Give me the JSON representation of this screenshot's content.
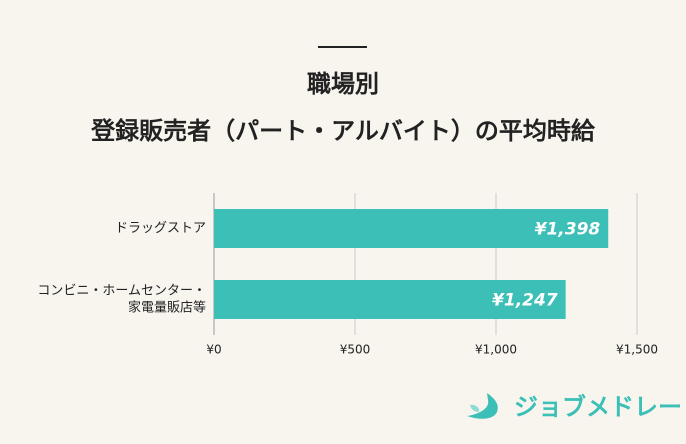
{
  "chart_data": {
    "type": "hbar",
    "title": [
      "職場別",
      "登録販売者（パート・アルバイト）の平均時給"
    ],
    "categories": [
      [
        "ドラッグストア"
      ],
      [
        "コンビニ・ホームセンター・",
        "家電量販店等"
      ]
    ],
    "values": [
      1398,
      1247
    ],
    "value_labels": [
      "¥1,398",
      "¥1,247"
    ],
    "color": "#3bbfb6",
    "xlim": [
      0,
      1500
    ],
    "xticks": [
      {
        "value": 0,
        "label": "¥0"
      },
      {
        "value": 500,
        "label": "¥500"
      },
      {
        "value": 1000,
        "label": "¥1,000"
      },
      {
        "value": 1500,
        "label": "¥1,500"
      }
    ],
    "grid": true
  },
  "logo": "ジョブメドレー"
}
